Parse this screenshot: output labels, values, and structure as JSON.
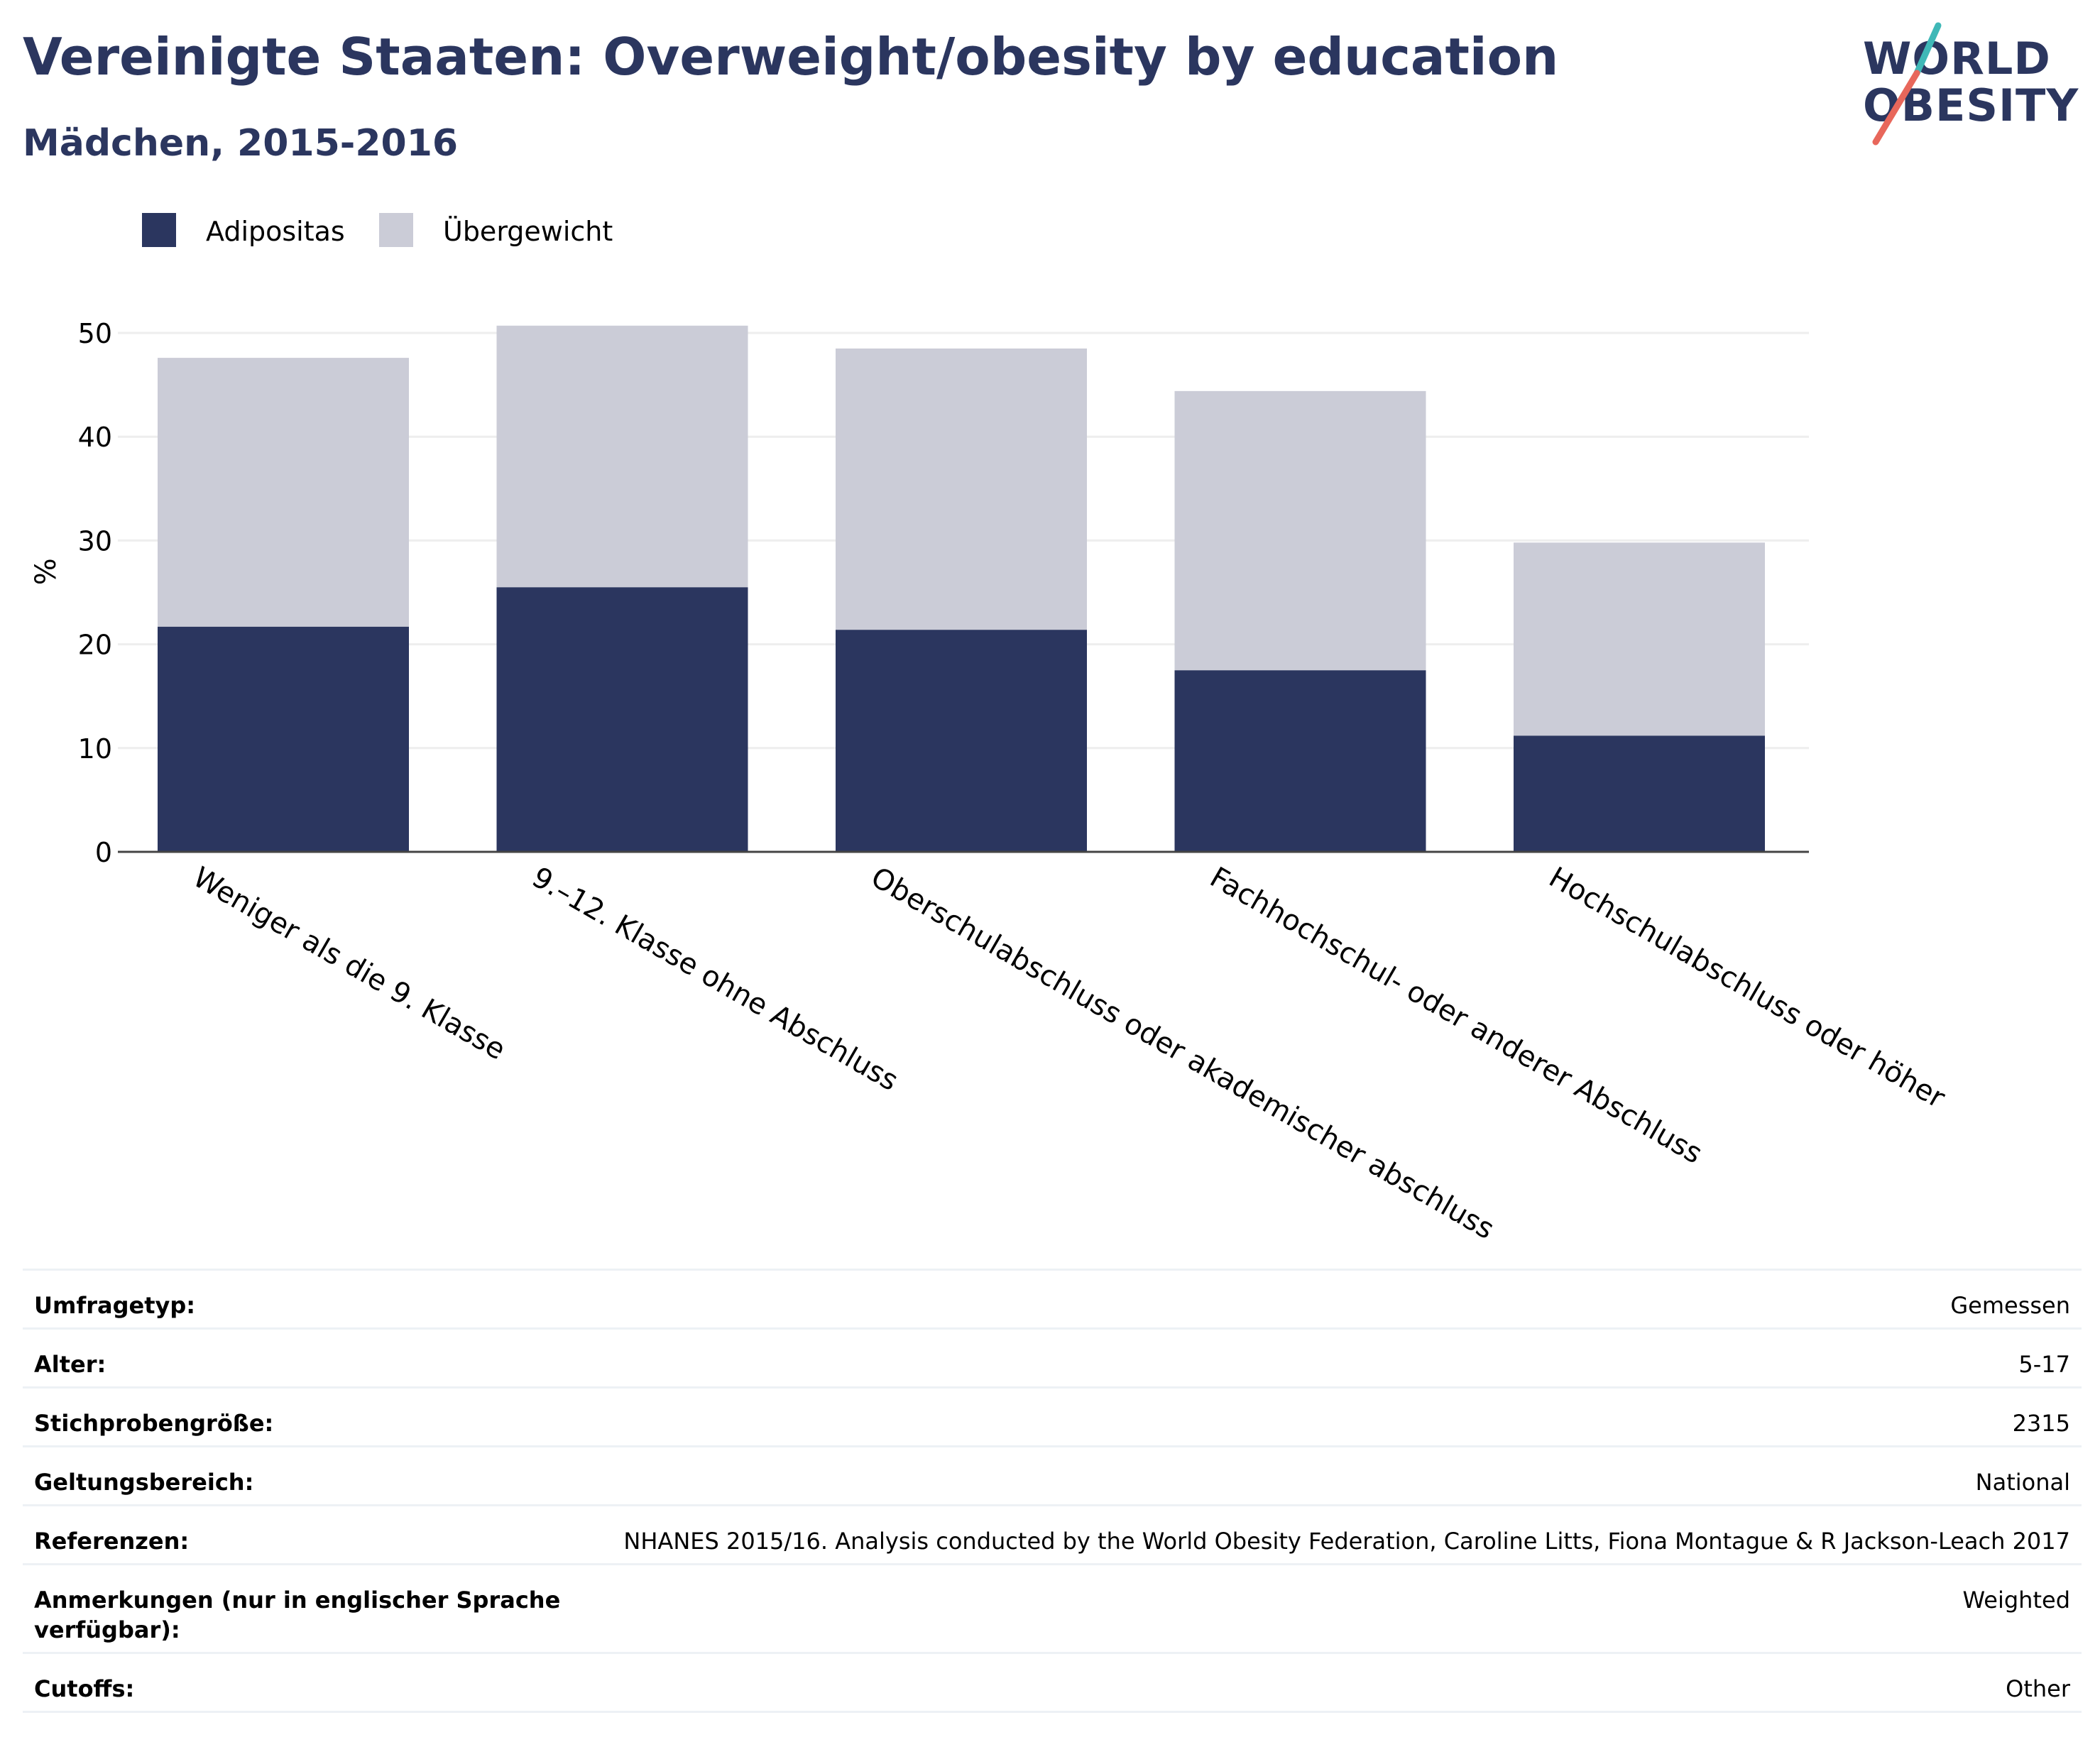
{
  "header": {
    "title": "Vereinigte Staaten: Overweight/obesity by education",
    "subtitle": "Mädchen, 2015-2016"
  },
  "logo": {
    "line1": "WORLD",
    "line2": "OBESITY"
  },
  "colors": {
    "obesity": "#2b365f",
    "overweight": "#cbccd7",
    "text": "#2b365f",
    "grid": "#eeeeee",
    "logo_slash_teal": "#3fb8b7",
    "logo_slash_red": "#e8675b"
  },
  "chart_data": {
    "type": "bar",
    "stacked": true,
    "categories": [
      "Weniger als die 9. Klasse",
      "9.–12. Klasse ohne Abschluss",
      "Oberschulabschluss oder akademischer abschluss",
      "Fachhochschul- oder anderer Abschluss",
      "Hochschulabschluss oder höher"
    ],
    "series": [
      {
        "name": "Adipositas",
        "values": [
          21.7,
          25.5,
          21.4,
          17.5,
          11.2
        ],
        "color": "#2b365f"
      },
      {
        "name": "Übergewicht",
        "values": [
          25.9,
          25.2,
          27.1,
          26.9,
          18.6
        ],
        "color": "#cbccd7"
      }
    ],
    "ylabel": "%",
    "xlabel": "",
    "ylim": [
      0,
      55
    ],
    "yticks": [
      0,
      10,
      20,
      30,
      40,
      50
    ],
    "grid": true,
    "legend_position": "top-left"
  },
  "meta": [
    {
      "label": "Umfragetyp:",
      "value": "Gemessen"
    },
    {
      "label": "Alter:",
      "value": "5-17"
    },
    {
      "label": "Stichprobengröße:",
      "value": "2315"
    },
    {
      "label": "Geltungsbereich:",
      "value": "National"
    },
    {
      "label": "Referenzen:",
      "value": "NHANES 2015/16. Analysis conducted by the World Obesity Federation, Caroline Litts, Fiona Montague & R Jackson-Leach 2017"
    },
    {
      "label": "Anmerkungen (nur in englischer Sprache\nverfügbar):",
      "value": "Weighted"
    },
    {
      "label": "Cutoffs:",
      "value": "Other"
    }
  ]
}
